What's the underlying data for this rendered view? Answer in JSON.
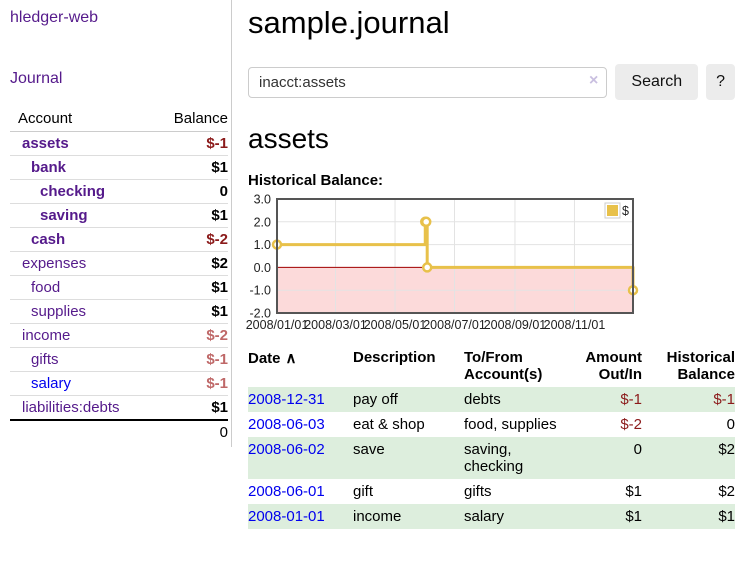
{
  "colors": {
    "link_purple": "#551a8b",
    "link_blue": "#0000ee",
    "neg_strong": "#8b1a1a",
    "neg_soft": "#bf6868",
    "row_green": "#ddeedd",
    "chart_line": "#e8c14a",
    "chart_neg_fill": "#fcdada",
    "chart_zero_line": "#a40000",
    "chart_grid": "#e3e3e3",
    "chart_border": "#555555"
  },
  "sidebar": {
    "brand": "hledger-web",
    "nav_journal": "Journal",
    "table": {
      "headers": {
        "account": "Account",
        "balance": "Balance"
      },
      "rows": [
        {
          "name": "assets",
          "depth": 0,
          "bold": true,
          "link": "purple",
          "balance": "$-1",
          "balance_tone": "strong"
        },
        {
          "name": "bank",
          "depth": 1,
          "bold": true,
          "link": "purple",
          "balance": "$1",
          "balance_tone": "none"
        },
        {
          "name": "checking",
          "depth": 2,
          "bold": true,
          "link": "purple",
          "balance": "0",
          "balance_tone": "none"
        },
        {
          "name": "saving",
          "depth": 2,
          "bold": true,
          "link": "purple",
          "balance": "$1",
          "balance_tone": "none"
        },
        {
          "name": "cash",
          "depth": 1,
          "bold": true,
          "link": "purple",
          "balance": "$-2",
          "balance_tone": "strong"
        },
        {
          "name": "expenses",
          "depth": 0,
          "bold": false,
          "link": "purple",
          "balance": "$2",
          "balance_tone": "none"
        },
        {
          "name": "food",
          "depth": 1,
          "bold": false,
          "link": "purple",
          "balance": "$1",
          "balance_tone": "none"
        },
        {
          "name": "supplies",
          "depth": 1,
          "bold": false,
          "link": "purple",
          "balance": "$1",
          "balance_tone": "none"
        },
        {
          "name": "income",
          "depth": 0,
          "bold": false,
          "link": "purple",
          "balance": "$-2",
          "balance_tone": "soft"
        },
        {
          "name": "gifts",
          "depth": 1,
          "bold": false,
          "link": "purple",
          "balance": "$-1",
          "balance_tone": "soft"
        },
        {
          "name": "salary",
          "depth": 1,
          "bold": false,
          "link": "blue",
          "balance": "$-1",
          "balance_tone": "soft"
        },
        {
          "name": "liabilities:debts",
          "depth": 0,
          "bold": false,
          "link": "purple",
          "balance": "$1",
          "balance_tone": "none"
        }
      ],
      "total": "0"
    }
  },
  "main": {
    "title": "sample.journal",
    "search": {
      "value": "inacct:assets",
      "clear_icon": "×",
      "search_button": "Search",
      "help_button": "?"
    },
    "account_heading": "assets",
    "chart_title": "Historical Balance:"
  },
  "chart_data": {
    "type": "line",
    "title": "Historical Balance",
    "step": true,
    "legend_label": "$",
    "legend_position": "top-right",
    "x_range": [
      "2008-01-01",
      "2008-12-31"
    ],
    "y_range": [
      -2,
      3
    ],
    "x_ticks": [
      "2008/01/01",
      "2008/03/01",
      "2008/05/01",
      "2008/07/01",
      "2008/09/01",
      "2008/11/01"
    ],
    "y_ticks": [
      "3.0",
      "2.0",
      "1.0",
      "0.0",
      "-1.0",
      "-2.0"
    ],
    "grid": true,
    "negative_region_highlight": true,
    "series": [
      {
        "name": "$",
        "color": "#e8c14a",
        "points": [
          {
            "date": "2008-01-01",
            "value": 1
          },
          {
            "date": "2008-06-01",
            "value": 2
          },
          {
            "date": "2008-06-02",
            "value": 2
          },
          {
            "date": "2008-06-03",
            "value": 0
          },
          {
            "date": "2008-12-31",
            "value": -1
          }
        ]
      }
    ]
  },
  "register": {
    "sort_icon": "∧",
    "columns": [
      {
        "label": "Date"
      },
      {
        "label": "Description"
      },
      {
        "label": "To/From Account(s)"
      },
      {
        "label": "Amount Out/In"
      },
      {
        "label": "Historical Balance"
      }
    ],
    "rows": [
      {
        "date": "2008-12-31",
        "description": "pay off",
        "accounts": "debts",
        "amount": "$-1",
        "amount_negative": true,
        "balance": "$-1",
        "balance_negative": true,
        "highlight": true
      },
      {
        "date": "2008-06-03",
        "description": "eat & shop",
        "accounts": "food, supplies",
        "amount": "$-2",
        "amount_negative": true,
        "balance": "0",
        "balance_negative": false,
        "highlight": false
      },
      {
        "date": "2008-06-02",
        "description": "save",
        "accounts": "saving, checking",
        "amount": "0",
        "amount_negative": false,
        "balance": "$2",
        "balance_negative": false,
        "highlight": true
      },
      {
        "date": "2008-06-01",
        "description": "gift",
        "accounts": "gifts",
        "amount": "$1",
        "amount_negative": false,
        "balance": "$2",
        "balance_negative": false,
        "highlight": false
      },
      {
        "date": "2008-01-01",
        "description": "income",
        "accounts": "salary",
        "amount": "$1",
        "amount_negative": false,
        "balance": "$1",
        "balance_negative": false,
        "highlight": true
      }
    ]
  }
}
